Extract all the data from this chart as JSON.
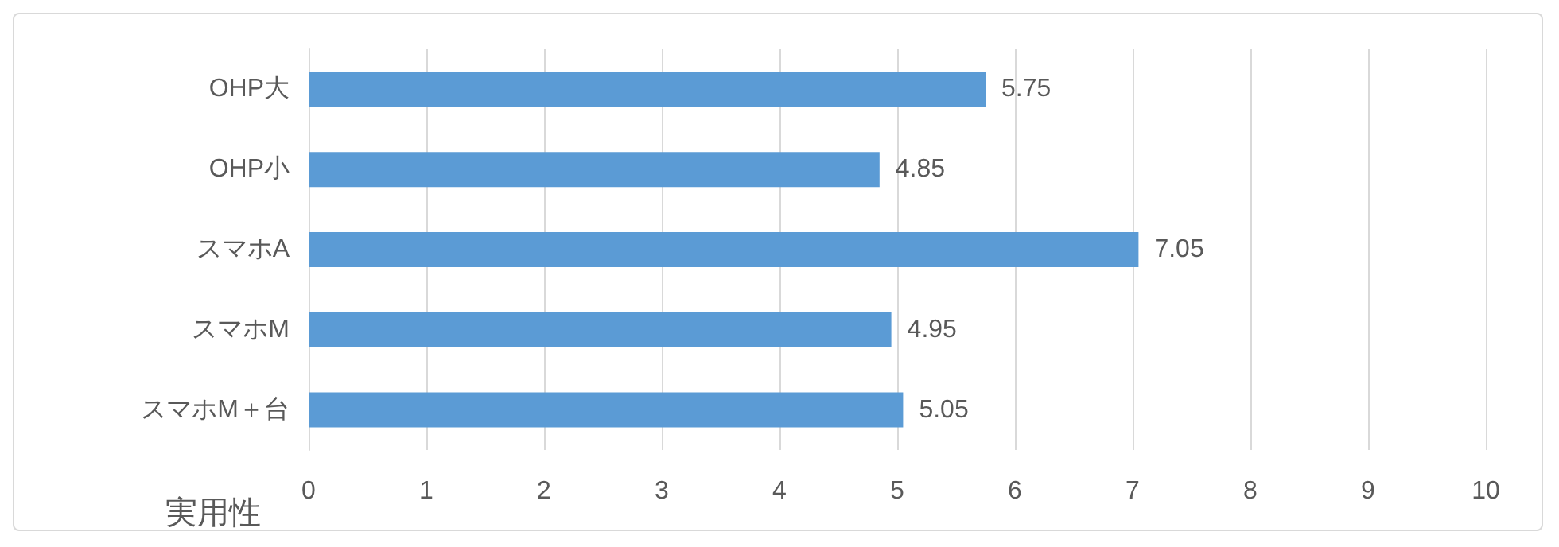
{
  "chart_data": {
    "type": "bar",
    "orientation": "horizontal",
    "xlabel": "実用性",
    "categories": [
      "OHP大",
      "OHP小",
      "スマホA",
      "スマホM",
      "スマホM＋台"
    ],
    "values": [
      5.75,
      4.85,
      7.05,
      4.95,
      5.05
    ],
    "color": "#5b9bd5",
    "xlim": [
      0,
      10
    ],
    "xticks": [
      0,
      1,
      2,
      3,
      4,
      5,
      6,
      7,
      8,
      9,
      10
    ],
    "grid": "x",
    "data_labels": true
  }
}
